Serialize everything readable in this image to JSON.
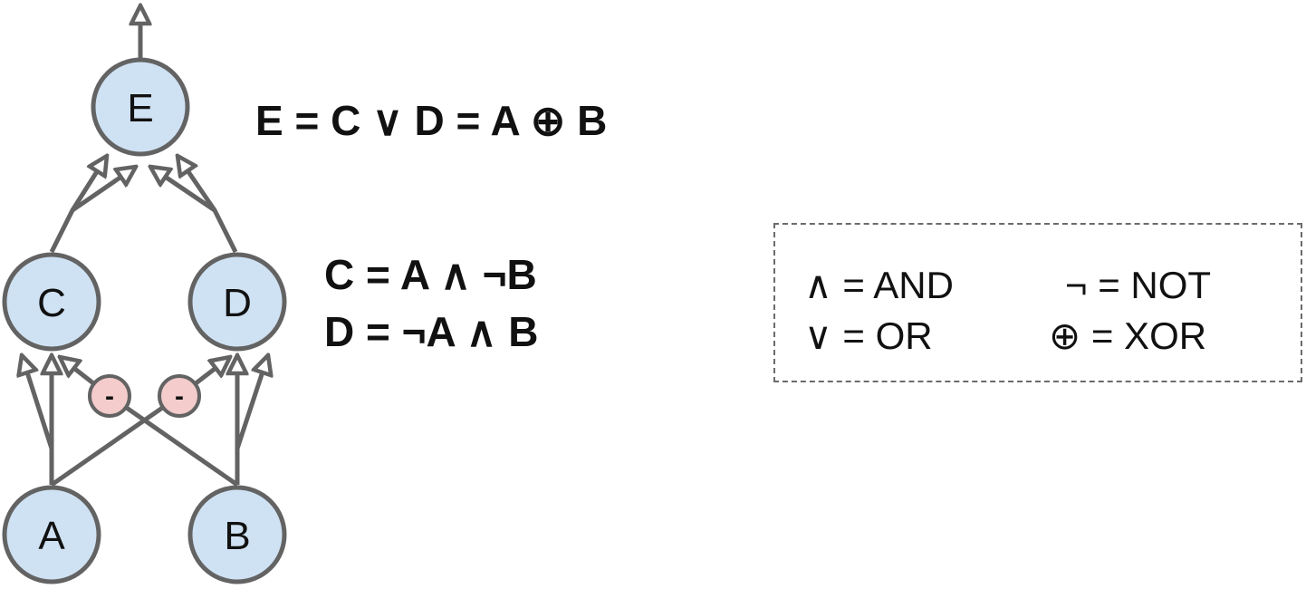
{
  "nodes": {
    "E": "E",
    "C": "C",
    "D": "D",
    "A": "A",
    "B": "B"
  },
  "inhibitors": {
    "left": "-",
    "right": "-"
  },
  "formulas": {
    "e": "E = C ∨ D = A ⊕ B",
    "c": "C = A ∧ ¬B",
    "d": "D = ¬A ∧ B"
  },
  "legend": {
    "and": "∧ = AND",
    "or": "∨ = OR",
    "not": "¬ = NOT",
    "xor": "⊕ = XOR"
  },
  "colors": {
    "node_fill": "#cfe2f3",
    "inhibitor_fill": "#f4cccc",
    "edge": "#636363",
    "legend_border": "#6b6b6b"
  }
}
